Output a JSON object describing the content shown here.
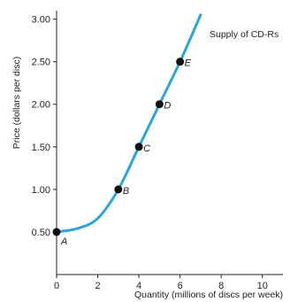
{
  "chart_data": {
    "type": "line",
    "title": "",
    "xlabel": "Quantity (millions of discs per week)",
    "ylabel": "Price (dollars per disc)",
    "xlim": [
      0,
      11
    ],
    "ylim": [
      0,
      3.1
    ],
    "x_ticks": [
      0,
      2,
      4,
      6,
      8,
      10
    ],
    "y_ticks": [
      0.5,
      1.0,
      1.5,
      2.0,
      2.5,
      3.0
    ],
    "x_tick_labels": [
      "0",
      "2",
      "4",
      "6",
      "8",
      "10"
    ],
    "y_tick_labels": [
      "0.50",
      "1.00",
      "1.50",
      "2.00",
      "2.50",
      "3.00"
    ],
    "grid": false,
    "legend": "none",
    "series": [
      {
        "name": "Supply of CD-Rs",
        "color": "#2aa5dc",
        "x": [
          0,
          1,
          2,
          3,
          4,
          5,
          6,
          7
        ],
        "y": [
          0.5,
          0.54,
          0.66,
          1.0,
          1.5,
          2.0,
          2.5,
          3.05
        ]
      }
    ],
    "points": [
      {
        "label": "A",
        "x": 0,
        "y": 0.5
      },
      {
        "label": "B",
        "x": 3,
        "y": 1.0
      },
      {
        "label": "C",
        "x": 4,
        "y": 1.5
      },
      {
        "label": "D",
        "x": 5,
        "y": 2.0
      },
      {
        "label": "E",
        "x": 6,
        "y": 2.5
      }
    ],
    "curve_label": "Supply of CD-Rs"
  }
}
